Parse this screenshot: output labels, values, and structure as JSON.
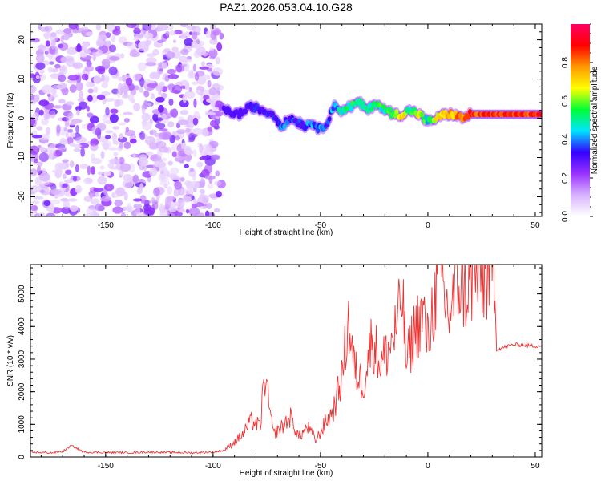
{
  "chart_data": [
    {
      "type": "heatmap",
      "title": "PAZ1.2026.053.04.10.G28",
      "xlabel": "Height of straight line (km)",
      "ylabel": "Frequency (Hz)",
      "xlim": [
        -185,
        53
      ],
      "ylim": [
        -25,
        24
      ],
      "xticks": [
        -150,
        -100,
        -50,
        0,
        50
      ],
      "yticks": [
        -20,
        -10,
        0,
        10,
        20
      ],
      "colorbar": {
        "label": "Normalized spectral amplitude",
        "range": [
          0,
          1
        ],
        "ticks": [
          0.0,
          0.2,
          0.4,
          0.6,
          0.8
        ],
        "tick_labels": [
          "0.0",
          "0.2",
          "0.4",
          "0.6",
          "0.8"
        ],
        "colors": [
          "#ffffff",
          "#d9b3ff",
          "#9933ff",
          "#3300ff",
          "#00e5ff",
          "#00ff33",
          "#ffff00",
          "#ff9900",
          "#ff0000",
          "#ff0066"
        ]
      },
      "noise_region_x": [
        -185,
        -96
      ],
      "signal_track": {
        "x": [
          -95,
          -88,
          -82,
          -77,
          -72,
          -68,
          -64,
          -60,
          -57,
          -54,
          -50,
          -47,
          -44,
          -40,
          -36,
          -32,
          -28,
          -24,
          -20,
          -15,
          -12,
          -8,
          -4,
          0,
          4,
          8,
          12,
          16,
          20,
          53
        ],
        "frequency": [
          2,
          1,
          3,
          2,
          1,
          -2,
          0,
          -1,
          -2,
          -1,
          -3,
          -1,
          3,
          2,
          3,
          4,
          2,
          4,
          2,
          1,
          1,
          2,
          1,
          -1,
          0,
          1,
          1,
          0,
          1,
          1
        ],
        "amplitude": [
          0.35,
          0.35,
          0.4,
          0.38,
          0.4,
          0.45,
          0.45,
          0.42,
          0.45,
          0.48,
          0.5,
          0.45,
          0.52,
          0.55,
          0.6,
          0.62,
          0.58,
          0.62,
          0.6,
          0.7,
          0.85,
          0.6,
          0.75,
          0.55,
          0.75,
          0.8,
          0.85,
          0.9,
          0.95,
          0.95
        ]
      }
    },
    {
      "type": "line",
      "title": "",
      "xlabel": "Height of straight line (km)",
      "ylabel": "SNR (10 * v/v)",
      "xlim": [
        -185,
        53
      ],
      "ylim": [
        0,
        5900
      ],
      "xticks": [
        -150,
        -100,
        -50,
        0,
        50
      ],
      "yticks": [
        0,
        1000,
        2000,
        3000,
        4000,
        5000
      ],
      "series": [
        {
          "name": "SNR",
          "color": "#ee3333",
          "x": [
            -185,
            -175,
            -170,
            -166,
            -160,
            -150,
            -140,
            -130,
            -120,
            -110,
            -100,
            -95,
            -90,
            -86,
            -82,
            -78,
            -76,
            -72,
            -68,
            -64,
            -60,
            -56,
            -52,
            -48,
            -44,
            -40,
            -37,
            -34,
            -30,
            -26,
            -22,
            -18,
            -14,
            -12,
            -10,
            -6,
            -2,
            0,
            2,
            6,
            8,
            10,
            14,
            18,
            22,
            26,
            30,
            31,
            32,
            40,
            50,
            53
          ],
          "y": [
            150,
            130,
            170,
            350,
            150,
            140,
            130,
            150,
            140,
            130,
            150,
            200,
            450,
            700,
            1100,
            900,
            2500,
            700,
            900,
            1200,
            600,
            900,
            500,
            1000,
            1400,
            2400,
            4100,
            2600,
            2200,
            3600,
            2800,
            3300,
            4000,
            5000,
            2800,
            3900,
            4300,
            3400,
            4400,
            5600,
            4700,
            4300,
            5300,
            5000,
            5500,
            5300,
            5700,
            5400,
            3300,
            3450,
            3400,
            3420
          ]
        }
      ]
    }
  ]
}
